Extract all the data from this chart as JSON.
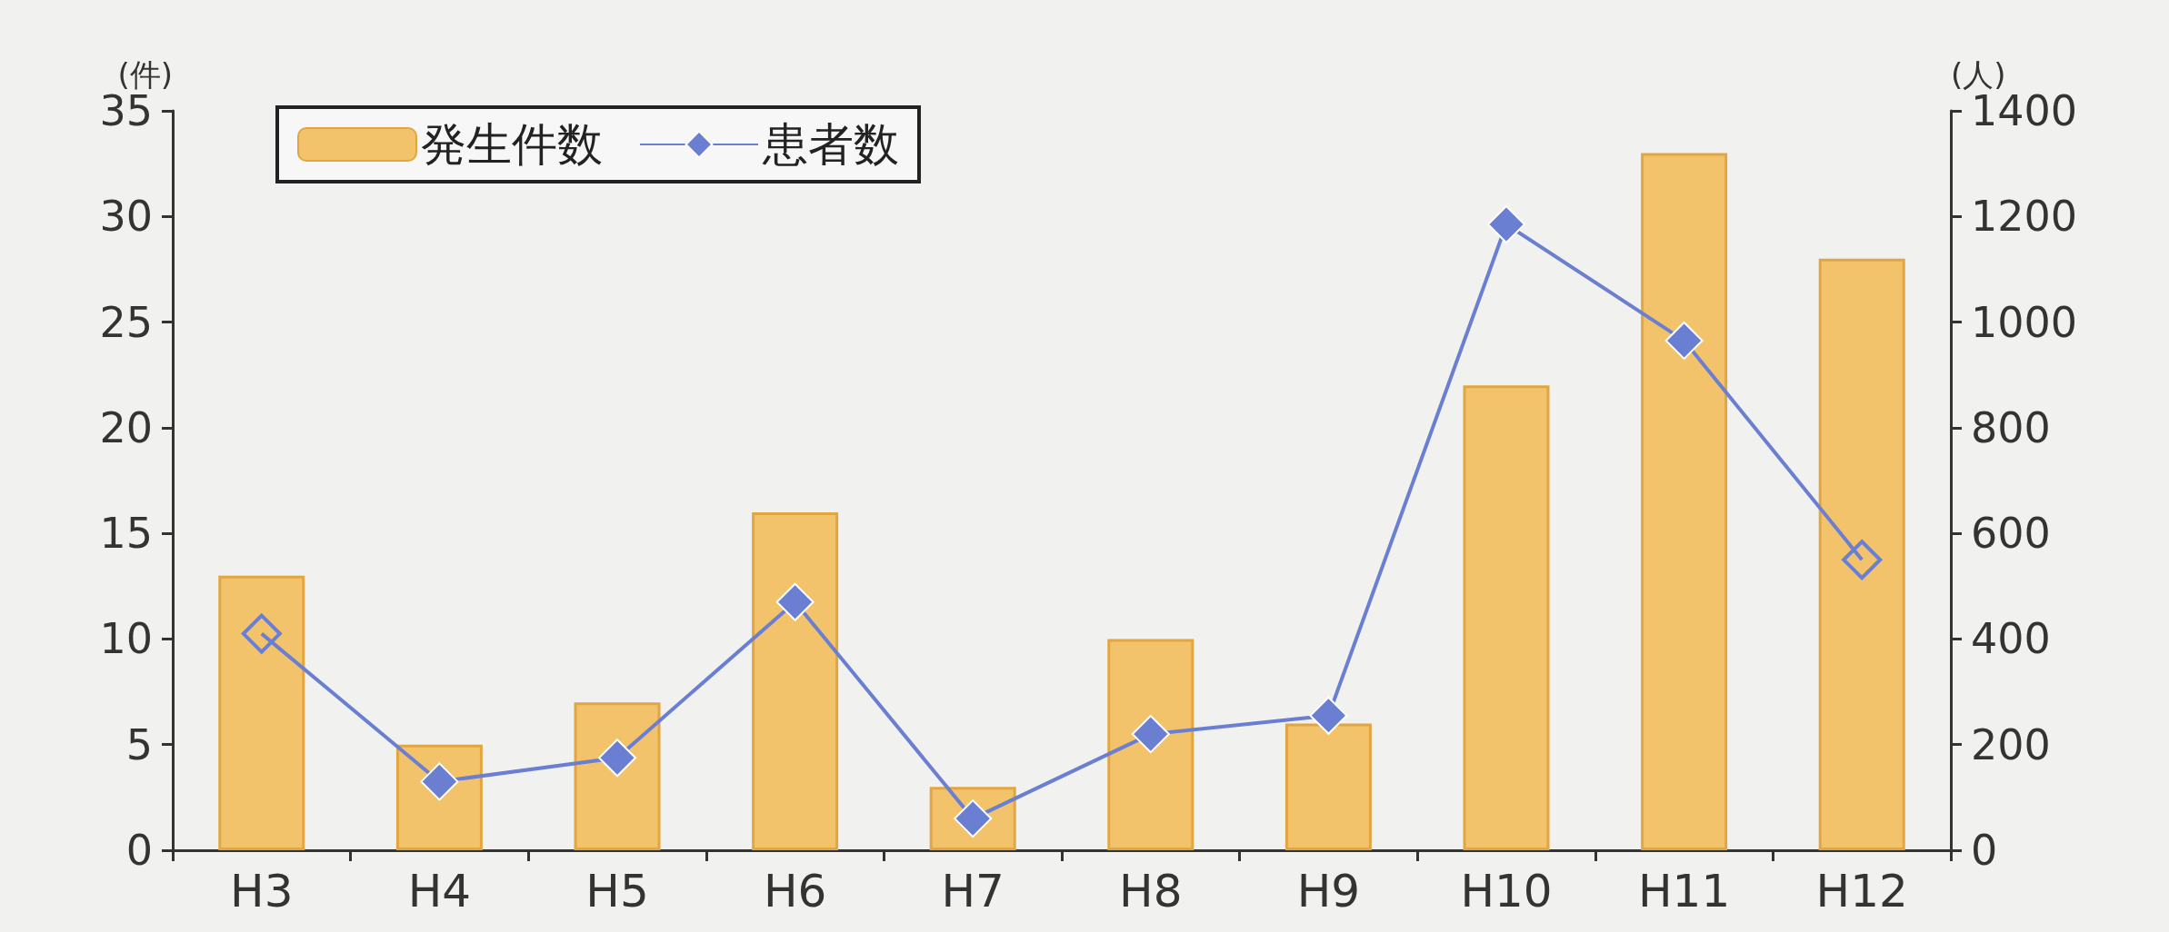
{
  "chart_data": {
    "type": "bar",
    "ylabel": "(件)",
    "y2label": "(人)",
    "categories": [
      "H3",
      "H4",
      "H5",
      "H6",
      "H7",
      "H8",
      "H9",
      "H10",
      "H11",
      "H12"
    ],
    "series": [
      {
        "name": "発生件数",
        "color": "#f3c36b",
        "values": [
          13,
          5,
          7,
          16,
          3,
          10,
          6,
          22,
          33,
          28
        ]
      },
      {
        "name": "患者数",
        "type": "line",
        "axis": "y2",
        "color": "#6b7fd2",
        "marker": "diamond",
        "values": [
          410,
          130,
          175,
          470,
          60,
          220,
          255,
          1185,
          965,
          550
        ]
      }
    ],
    "ylim": [
      0,
      35
    ],
    "yticks": [
      0,
      5,
      10,
      15,
      20,
      25,
      30,
      35
    ],
    "y2lim": [
      0,
      1400
    ],
    "y2ticks": [
      0,
      200,
      400,
      600,
      800,
      1000,
      1200,
      1400
    ],
    "grid": false,
    "legend": "top left"
  }
}
